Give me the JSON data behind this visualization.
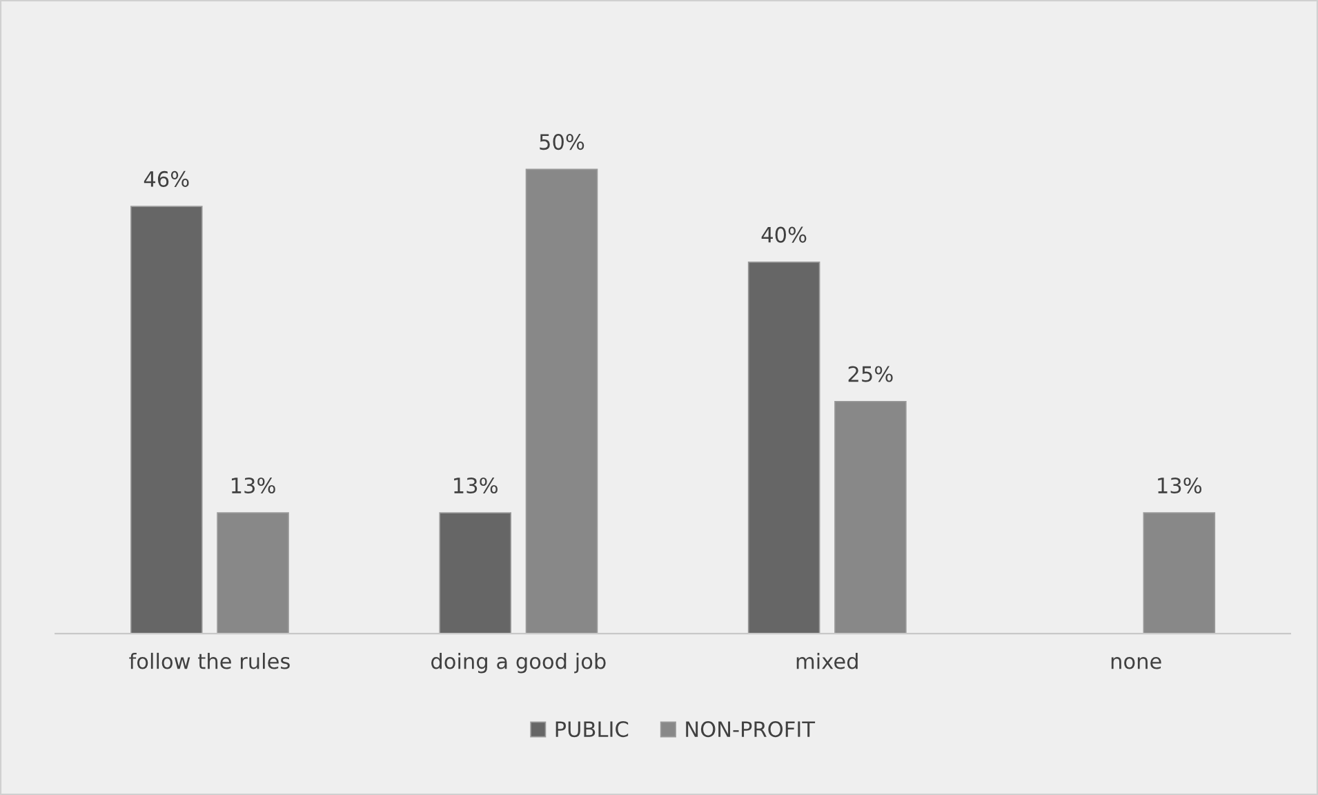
{
  "chart_data": {
    "type": "bar",
    "categories": [
      "follow the rules",
      "doing a good job",
      "mixed",
      "none"
    ],
    "series": [
      {
        "name": "PUBLIC",
        "color": "#666666",
        "values": [
          46,
          13,
          40,
          null
        ],
        "value_labels": [
          "46%",
          "13%",
          "40%",
          null
        ]
      },
      {
        "name": "NON-PROFIT",
        "color": "#888888",
        "values": [
          13,
          50,
          25,
          13
        ],
        "value_labels": [
          "13%",
          "50%",
          "25%",
          "13%"
        ]
      }
    ],
    "legend": "bottom"
  }
}
